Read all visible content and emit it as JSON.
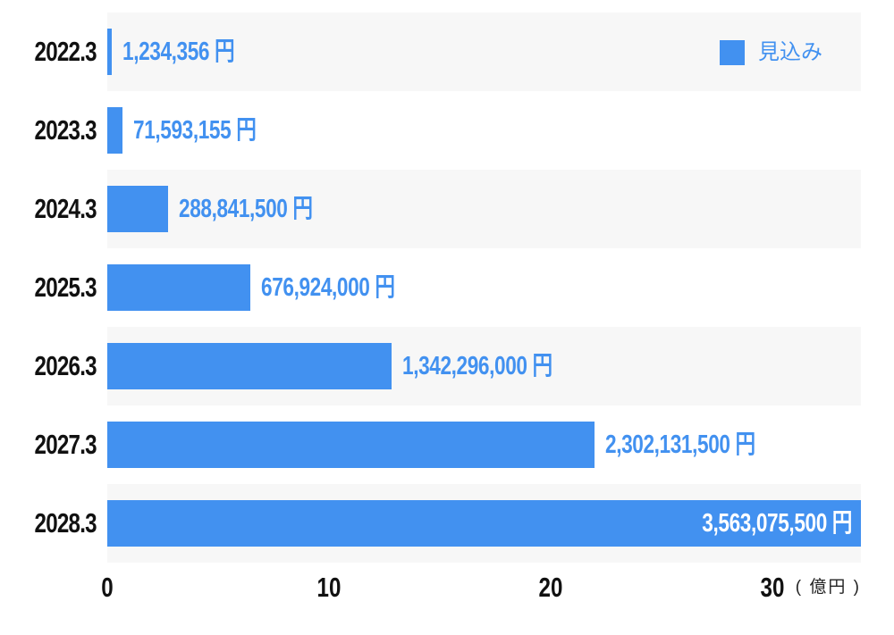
{
  "chart_data": {
    "type": "bar",
    "orientation": "horizontal",
    "categories": [
      "2022.3",
      "2023.3",
      "2024.3",
      "2025.3",
      "2026.3",
      "2027.3",
      "2028.3"
    ],
    "series": [
      {
        "name": "見込み",
        "values": [
          1234356,
          71593155,
          288841500,
          676924000,
          1342296000,
          2302131500,
          3563075500
        ],
        "value_labels": [
          "1,234,356 円",
          "71,593,155 円",
          "288,841,500 円",
          "676,924,000 円",
          "1,342,296,000 円",
          "2,302,131,500 円",
          "3,563,075,500 円"
        ]
      }
    ],
    "value_label_inside": [
      false,
      false,
      false,
      false,
      false,
      false,
      true
    ],
    "x_axis": {
      "tick_labels": [
        "0",
        "10",
        "20",
        "30"
      ],
      "tick_values_oku": [
        0,
        10,
        20,
        30
      ],
      "unit_label": "( 億円 )",
      "range_yen": [
        0,
        3563075500
      ],
      "grid": false
    },
    "legend": {
      "label": "見込み",
      "position": "top-right"
    },
    "layout": {
      "row_stripe_pattern": "rows 1,3,5,7 striped light gray",
      "value_label_position": "right of bar end, inside bar for last row"
    },
    "colors": {
      "bar": "#4291F0",
      "value_label": "#4291F0",
      "value_label_inside": "#FFFFFF",
      "row_stripe": "#F7F7F7",
      "category_label": "#111111",
      "tick_label": "#111111",
      "axis_unit": "#222222",
      "background": "#FFFFFF"
    }
  }
}
